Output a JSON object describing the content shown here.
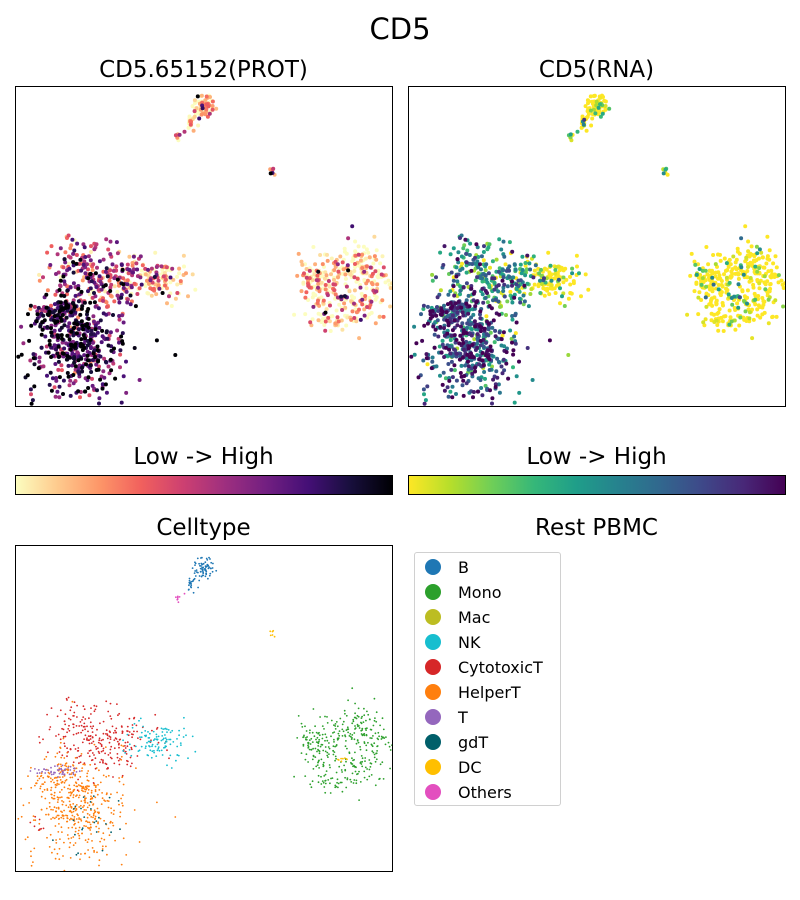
{
  "figure": {
    "title": "CD5"
  },
  "chart_data": [
    {
      "type": "scatter",
      "title": "CD5.65152(PROT)",
      "colorbar": {
        "label": "Low  ->  High",
        "colormap": "magma_r",
        "stops": [
          "#fcfdbf",
          "#feca8d",
          "#fd9668",
          "#f1605d",
          "#cd4071",
          "#9e2f7f",
          "#721f81",
          "#440f76",
          "#180f3d",
          "#000004"
        ]
      },
      "grid": false,
      "axes_ticks": false
    },
    {
      "type": "scatter",
      "title": "CD5(RNA)",
      "colorbar": {
        "label": "Low  ->  High",
        "colormap": "viridis_r",
        "stops": [
          "#fde725",
          "#b5de2b",
          "#6ece58",
          "#35b779",
          "#1f9e89",
          "#26828e",
          "#31688e",
          "#3e4989",
          "#482878",
          "#440154"
        ]
      },
      "grid": false,
      "axes_ticks": false
    },
    {
      "type": "scatter",
      "title": "Celltype",
      "grid": false,
      "axes_ticks": false,
      "legend_placement": "right",
      "legend": {
        "title": "Rest PBMC",
        "entries": [
          {
            "name": "B",
            "color": "#1f77b4"
          },
          {
            "name": "Mono",
            "color": "#2ca02c"
          },
          {
            "name": "Mac",
            "color": "#bcbd22"
          },
          {
            "name": "NK",
            "color": "#17becf"
          },
          {
            "name": "CytotoxicT",
            "color": "#d62728"
          },
          {
            "name": "HelperT",
            "color": "#ff7f0e"
          },
          {
            "name": "T",
            "color": "#9467bd"
          },
          {
            "name": "gdT",
            "color": "#005f6a"
          },
          {
            "name": "DC",
            "color": "#ffbf00"
          },
          {
            "name": "Others",
            "color": "#e34fbf"
          }
        ]
      }
    }
  ]
}
